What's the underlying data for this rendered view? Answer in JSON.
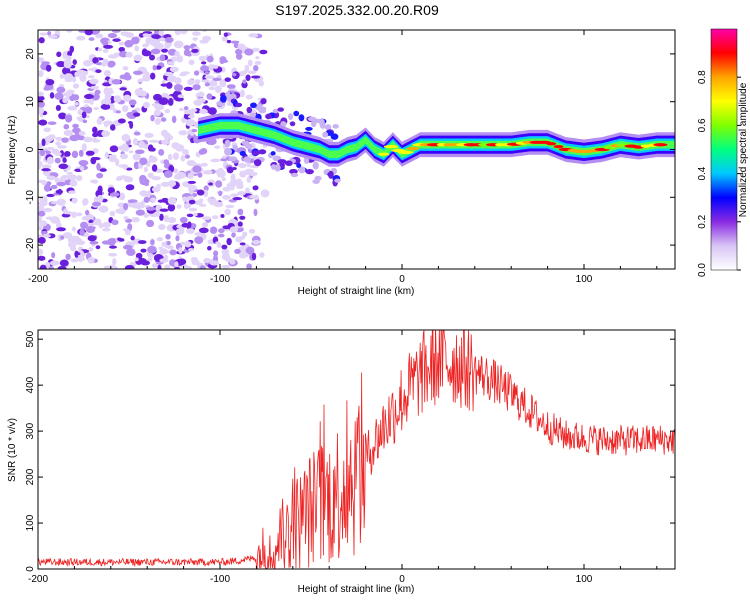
{
  "title": "S197.2025.332.00.20.R09",
  "chart_data": [
    {
      "type": "heatmap",
      "name": "spectrogram",
      "xlabel": "Height of straight line (km)",
      "ylabel": "Frequency (Hz)",
      "xlim": [
        -200,
        150
      ],
      "ylim": [
        -25,
        25
      ],
      "xticks": [
        -200,
        -100,
        0,
        100
      ],
      "yticks": [
        -20,
        -10,
        0,
        10,
        20
      ],
      "colorbar": {
        "label": "Normalized spectral amplitude",
        "range": [
          0,
          1
        ],
        "ticks": [
          "0.0",
          "0.2",
          "0.4",
          "0.6",
          "0.8"
        ],
        "colors": [
          "#ffffff",
          "#d8c6f5",
          "#8a2be2",
          "#0000ff",
          "#00c8ff",
          "#00ff7f",
          "#7fff00",
          "#ffff00",
          "#ffa500",
          "#ff0000",
          "#ff00aa"
        ]
      },
      "ridge": {
        "note": "dominant frequency ridge (Hz) vs height (km)",
        "x": [
          -112,
          -100,
          -90,
          -80,
          -70,
          -60,
          -50,
          -45,
          -40,
          -35,
          -30,
          -25,
          -20,
          -15,
          -10,
          -5,
          0,
          10,
          20,
          30,
          40,
          50,
          60,
          70,
          80,
          90,
          100,
          110,
          120,
          130,
          140,
          150
        ],
        "y": [
          4,
          5,
          5,
          4,
          3,
          1.5,
          0.5,
          0,
          -1,
          -1,
          0,
          0.5,
          2,
          0,
          -1,
          1,
          -1,
          1,
          1,
          1,
          1,
          1,
          1,
          1.5,
          1.5,
          0,
          -0.5,
          0,
          1,
          0.5,
          1,
          1
        ]
      }
    },
    {
      "type": "line",
      "name": "snr",
      "xlabel": "Height of straight line (km)",
      "ylabel": "SNR (10 * v/v)",
      "xlim": [
        -200,
        150
      ],
      "ylim": [
        0,
        520
      ],
      "xticks": [
        -200,
        -100,
        0,
        100
      ],
      "yticks": [
        0,
        100,
        200,
        300,
        400,
        500
      ],
      "color": "#ee2222",
      "envelope": {
        "x": [
          -200,
          -120,
          -100,
          -90,
          -80,
          -70,
          -60,
          -50,
          -40,
          -30,
          -20,
          -10,
          0,
          10,
          20,
          30,
          40,
          50,
          60,
          70,
          80,
          90,
          100,
          110,
          120,
          130,
          140,
          150
        ],
        "y": [
          15,
          15,
          15,
          18,
          25,
          50,
          90,
          130,
          150,
          190,
          240,
          310,
          370,
          420,
          455,
          450,
          430,
          410,
          380,
          345,
          310,
          290,
          285,
          280,
          280,
          280,
          282,
          280
        ]
      }
    }
  ]
}
